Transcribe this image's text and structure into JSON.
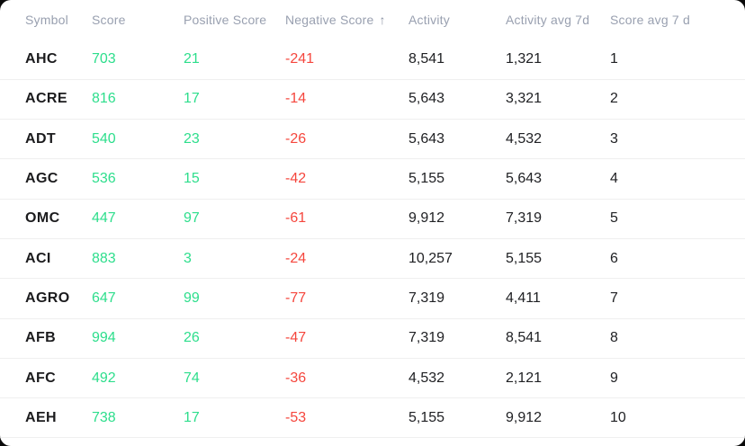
{
  "page": {
    "background_color": "#0b0b0b",
    "card_background_color": "#ffffff"
  },
  "colors": {
    "positive_value": "#2dde8c",
    "negative_value": "#f5463d",
    "header_text": "#99a0b0",
    "body_text": "#1c1c1e",
    "row_divider": "#efefef"
  },
  "table": {
    "columns": [
      {
        "key": "symbol",
        "label": "Symbol"
      },
      {
        "key": "score",
        "label": "Score"
      },
      {
        "key": "positive",
        "label": "Positive Score"
      },
      {
        "key": "negative",
        "label": "Negative Score",
        "sort_icon": "↑",
        "sorted": "ascending"
      },
      {
        "key": "activity",
        "label": "Activity"
      },
      {
        "key": "activity_avg",
        "label": "Activity avg 7d"
      },
      {
        "key": "score_avg",
        "label": "Score avg 7 d"
      }
    ],
    "rows": [
      {
        "symbol": "AHC",
        "score": "703",
        "positive": "21",
        "negative": "-241",
        "activity": "8,541",
        "activity_avg": "1,321",
        "score_avg": "1"
      },
      {
        "symbol": "ACRE",
        "score": "816",
        "positive": "17",
        "negative": "-14",
        "activity": "5,643",
        "activity_avg": "3,321",
        "score_avg": "2"
      },
      {
        "symbol": "ADT",
        "score": "540",
        "positive": "23",
        "negative": "-26",
        "activity": "5,643",
        "activity_avg": "4,532",
        "score_avg": "3"
      },
      {
        "symbol": "AGC",
        "score": "536",
        "positive": "15",
        "negative": "-42",
        "activity": "5,155",
        "activity_avg": "5,643",
        "score_avg": "4"
      },
      {
        "symbol": "OMC",
        "score": "447",
        "positive": "97",
        "negative": "-61",
        "activity": "9,912",
        "activity_avg": "7,319",
        "score_avg": "5"
      },
      {
        "symbol": "ACI",
        "score": "883",
        "positive": "3",
        "negative": "-24",
        "activity": "10,257",
        "activity_avg": "5,155",
        "score_avg": "6"
      },
      {
        "symbol": "AGRO",
        "score": "647",
        "positive": "99",
        "negative": "-77",
        "activity": "7,319",
        "activity_avg": "4,411",
        "score_avg": "7"
      },
      {
        "symbol": "AFB",
        "score": "994",
        "positive": "26",
        "negative": "-47",
        "activity": "7,319",
        "activity_avg": "8,541",
        "score_avg": "8"
      },
      {
        "symbol": "AFC",
        "score": "492",
        "positive": "74",
        "negative": "-36",
        "activity": "4,532",
        "activity_avg": "2,121",
        "score_avg": "9"
      },
      {
        "symbol": "AEH",
        "score": "738",
        "positive": "17",
        "negative": "-53",
        "activity": "5,155",
        "activity_avg": "9,912",
        "score_avg": "10"
      }
    ]
  }
}
